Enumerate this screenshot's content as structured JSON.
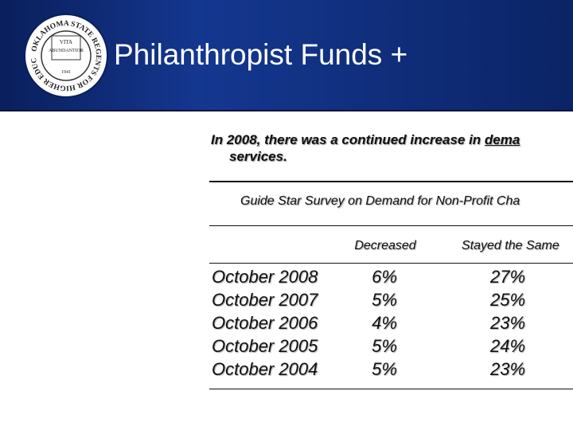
{
  "header": {
    "title": "Philanthropist Funds +",
    "logo": {
      "ring_text": "OKLAHOMA STATE REGENTS FOR HIGHER EDUCATION",
      "motto": [
        "VITA",
        "ABUNDANTIOR"
      ],
      "year": "1941"
    }
  },
  "intro": {
    "line1": "In 2008, there was a continued increase in ",
    "underlined": "dema",
    "line2": "services."
  },
  "table": {
    "title": "Guide Star Survey on Demand for Non-Profit Cha",
    "columns": [
      "Decreased",
      "Stayed the Same"
    ],
    "rows": [
      [
        "October 2008",
        "6%",
        "27%"
      ],
      [
        "October 2007",
        "5%",
        "25%"
      ],
      [
        "October 2006",
        "4%",
        "23%"
      ],
      [
        "October 2005",
        "5%",
        "24%"
      ],
      [
        "October 2004",
        "5%",
        "23%"
      ]
    ]
  }
}
